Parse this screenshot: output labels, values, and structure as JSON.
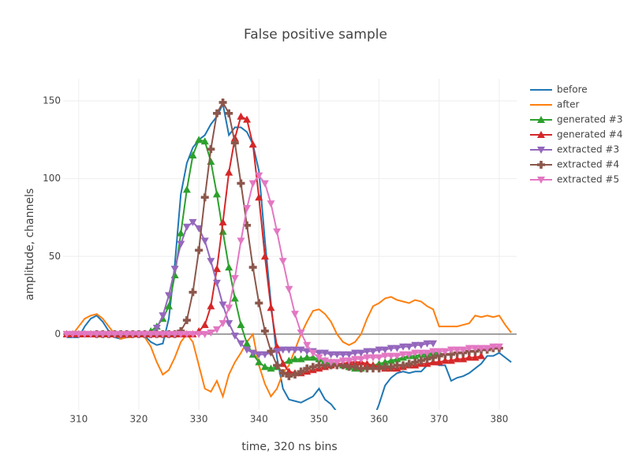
{
  "chart_data": {
    "type": "line",
    "title": "False positive sample",
    "x_label": "time, 320 ns bins",
    "y_label": "amplitude, channels",
    "xlim": [
      307.4,
      382.9
    ],
    "ylim": [
      -48.7,
      164.2
    ],
    "xticks": [
      310,
      320,
      330,
      340,
      350,
      360,
      370,
      380
    ],
    "yticks": [
      0,
      50,
      100,
      150
    ],
    "grid": true,
    "legend": "right",
    "x": [
      308,
      309,
      310,
      311,
      312,
      313,
      314,
      315,
      316,
      317,
      318,
      319,
      320,
      321,
      322,
      323,
      324,
      325,
      326,
      327,
      328,
      329,
      330,
      331,
      332,
      333,
      334,
      335,
      336,
      337,
      338,
      339,
      340,
      341,
      342,
      343,
      344,
      345,
      346,
      347,
      348,
      349,
      350,
      351,
      352,
      353,
      354,
      355,
      356,
      357,
      358,
      359,
      360,
      361,
      362,
      363,
      364,
      365,
      366,
      367,
      368,
      369,
      370,
      371,
      372,
      373,
      374,
      375,
      376,
      377,
      378,
      379,
      380,
      381,
      382
    ],
    "series": [
      {
        "name": "before",
        "color": "#1f77b4",
        "marker": "none",
        "values": [
          -2,
          -2,
          -2,
          5,
          10,
          12,
          8,
          2,
          -2,
          -3,
          -2,
          -1,
          0,
          -1,
          -5,
          -7,
          -6,
          10,
          45,
          90,
          110,
          120,
          125,
          128,
          135,
          140,
          148,
          128,
          133,
          133,
          130,
          122,
          105,
          60,
          20,
          -15,
          -35,
          -42,
          -43,
          -44,
          -42,
          -40,
          -35,
          -42,
          -45,
          -50,
          -55,
          -58,
          -62,
          -62,
          -58,
          -55,
          -45,
          -33,
          -28,
          -25,
          -24,
          -25,
          -24,
          -24,
          -20,
          -18,
          -20,
          -20,
          -30,
          -28,
          -27,
          -25,
          -22,
          -19,
          -14,
          -14,
          -12,
          -15,
          -18
        ]
      },
      {
        "name": "after",
        "color": "#ff7f0e",
        "marker": "none",
        "values": [
          -1,
          0,
          5,
          10,
          12,
          13,
          10,
          5,
          0,
          -3,
          -2,
          -2,
          0,
          -2,
          -8,
          -18,
          -26,
          -23,
          -15,
          -5,
          0,
          -5,
          -20,
          -35,
          -37,
          -30,
          -40,
          -26,
          -18,
          -12,
          -5,
          0,
          -20,
          -32,
          -40,
          -35,
          -25,
          -20,
          -10,
          0,
          8,
          15,
          16,
          13,
          8,
          0,
          -5,
          -7,
          -5,
          0,
          10,
          18,
          20,
          23,
          24,
          22,
          21,
          20,
          22,
          21,
          18,
          16,
          5,
          5,
          5,
          5,
          6,
          7,
          12,
          11,
          12,
          11,
          12,
          6,
          1
        ]
      },
      {
        "name": "generated #3",
        "color": "#2ca02c",
        "marker": "triangle-up",
        "values": [
          0,
          0,
          0,
          0,
          0,
          0,
          0,
          0,
          0,
          0,
          0,
          0,
          0,
          0,
          2,
          5,
          10,
          18,
          38,
          65,
          93,
          115,
          125,
          124,
          111,
          90,
          66,
          43,
          23,
          6,
          -6,
          -13,
          -18,
          -21,
          -22,
          -21,
          -19,
          -17,
          -16,
          -16,
          -15,
          -15,
          -16,
          -17,
          -18,
          -19,
          -20,
          -21,
          -22,
          -22,
          -21,
          -20,
          -19,
          -18,
          -17,
          -16,
          -15,
          -14,
          -14,
          -13,
          -13,
          -12,
          -12,
          null,
          null,
          null,
          null,
          null,
          null,
          null,
          null,
          null,
          null,
          null,
          null
        ]
      },
      {
        "name": "generated #4",
        "color": "#d62728",
        "marker": "triangle-up",
        "values": [
          0,
          0,
          0,
          0,
          0,
          0,
          0,
          0,
          0,
          0,
          0,
          0,
          0,
          0,
          0,
          0,
          0,
          0,
          0,
          0,
          0,
          0,
          2,
          6,
          18,
          42,
          72,
          104,
          126,
          140,
          138,
          122,
          88,
          50,
          17,
          -8,
          -19,
          -24,
          -25,
          -25,
          -24,
          -23,
          -22,
          -21,
          -20,
          -19,
          -19,
          -18,
          -18,
          -18,
          -19,
          -20,
          -21,
          -22,
          -22,
          -22,
          -21,
          -20,
          -20,
          -19,
          -19,
          -18,
          -18,
          -17,
          -17,
          -16,
          -16,
          -15,
          -15,
          -14,
          null,
          null,
          null,
          null,
          null
        ]
      },
      {
        "name": "extracted #3",
        "color": "#9467bd",
        "marker": "triangle-down",
        "values": [
          0,
          0,
          0,
          0,
          0,
          0,
          0,
          0,
          0,
          0,
          0,
          0,
          0,
          0,
          0,
          4,
          12,
          25,
          42,
          58,
          69,
          72,
          68,
          60,
          47,
          33,
          19,
          7,
          -1,
          -6,
          -10,
          -12,
          -13,
          -13,
          -12,
          -11,
          -10,
          -10,
          -10,
          -10,
          -11,
          -11,
          -12,
          -12,
          -13,
          -13,
          -13,
          -13,
          -12,
          -12,
          -11,
          -11,
          -10,
          -10,
          -9,
          -9,
          -8,
          -8,
          -7,
          -7,
          -6,
          -6,
          null,
          null,
          null,
          null,
          null,
          null,
          null,
          null,
          null,
          null,
          null,
          null,
          null
        ]
      },
      {
        "name": "extracted #4",
        "color": "#8c564b",
        "marker": "cross",
        "values": [
          null,
          null,
          null,
          null,
          null,
          0,
          0,
          0,
          0,
          0,
          0,
          0,
          0,
          0,
          0,
          0,
          0,
          0,
          0,
          2,
          9,
          27,
          54,
          88,
          119,
          142,
          149,
          142,
          123,
          97,
          70,
          43,
          20,
          2,
          -11,
          -20,
          -25,
          -27,
          -26,
          -24,
          -22,
          -21,
          -20,
          -20,
          -20,
          -20,
          -20,
          -21,
          -21,
          -22,
          -22,
          -22,
          -22,
          -21,
          -21,
          -20,
          -20,
          -19,
          -18,
          -17,
          -16,
          -15,
          -14,
          -13,
          -13,
          -12,
          -12,
          -11,
          -11,
          -10,
          -10,
          -9,
          -9,
          null,
          null
        ]
      },
      {
        "name": "extracted #5",
        "color": "#e377c2",
        "marker": "triangle-down",
        "values": [
          0,
          0,
          0,
          0,
          0,
          0,
          0,
          0,
          0,
          0,
          0,
          0,
          0,
          0,
          0,
          0,
          0,
          0,
          0,
          0,
          0,
          0,
          0,
          0,
          1,
          3,
          7,
          17,
          36,
          60,
          81,
          97,
          102,
          97,
          84,
          66,
          47,
          29,
          13,
          1,
          -7,
          -12,
          -15,
          -17,
          -18,
          -18,
          -17,
          -17,
          -16,
          -16,
          -15,
          -15,
          -15,
          -14,
          -14,
          -14,
          -13,
          -13,
          -12,
          -12,
          -12,
          -11,
          -11,
          -11,
          -10,
          -10,
          -10,
          -9,
          -9,
          -9,
          -9,
          -8,
          -8,
          null,
          null
        ]
      }
    ]
  }
}
